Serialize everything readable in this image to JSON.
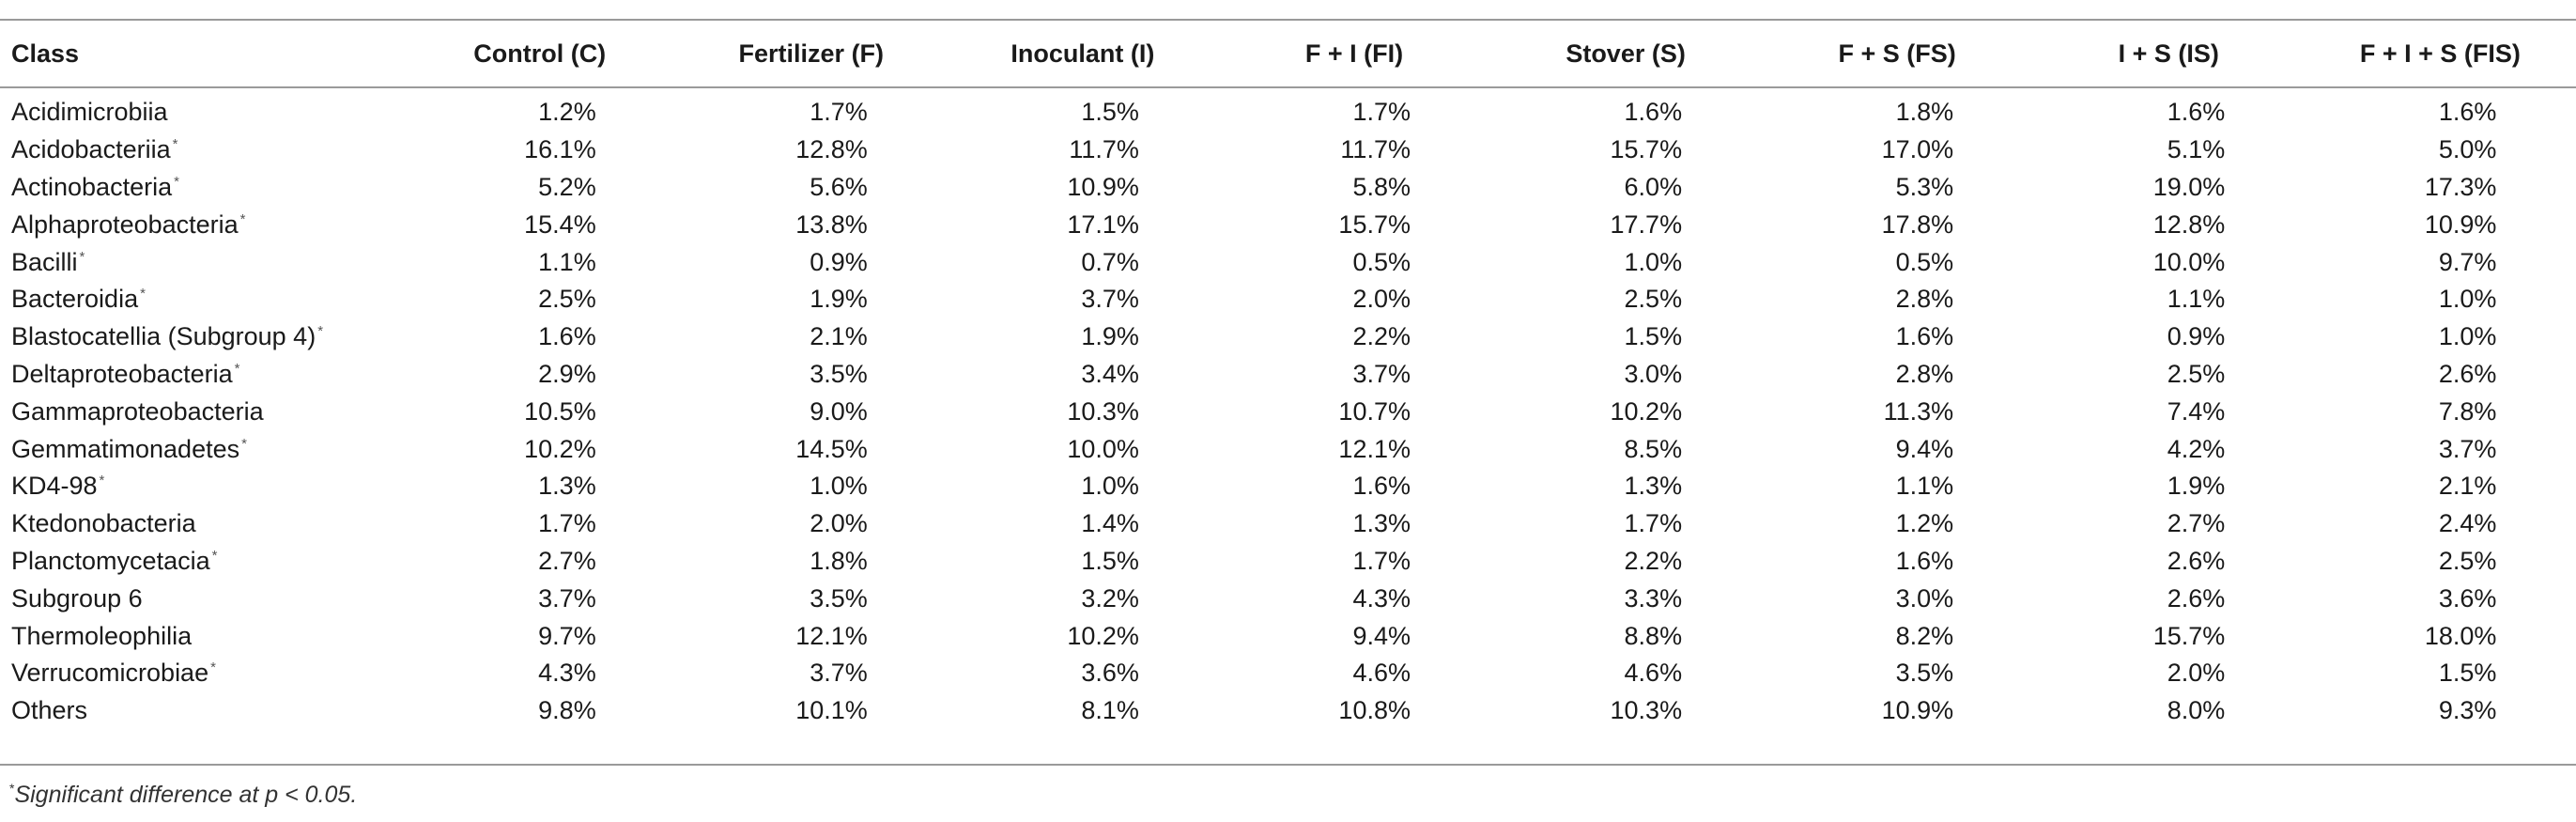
{
  "table": {
    "columns": [
      "Class",
      "Control (C)",
      "Fertilizer (F)",
      "Inoculant (I)",
      "F + I (FI)",
      "Stover (S)",
      "F + S (FS)",
      "I + S (IS)",
      "F + I + S (FIS)"
    ],
    "rows": [
      {
        "class": "Acidimicrobiia",
        "sig": "",
        "values": [
          "1.2%",
          "1.7%",
          "1.5%",
          "1.7%",
          "1.6%",
          "1.8%",
          "1.6%",
          "1.6%"
        ]
      },
      {
        "class": "Acidobacteriia",
        "sig": "*",
        "values": [
          "16.1%",
          "12.8%",
          "11.7%",
          "11.7%",
          "15.7%",
          "17.0%",
          "5.1%",
          "5.0%"
        ]
      },
      {
        "class": "Actinobacteria",
        "sig": "*",
        "values": [
          "5.2%",
          "5.6%",
          "10.9%",
          "5.8%",
          "6.0%",
          "5.3%",
          "19.0%",
          "17.3%"
        ]
      },
      {
        "class": "Alphaproteobacteria",
        "sig": "*",
        "values": [
          "15.4%",
          "13.8%",
          "17.1%",
          "15.7%",
          "17.7%",
          "17.8%",
          "12.8%",
          "10.9%"
        ]
      },
      {
        "class": "Bacilli",
        "sig": "*",
        "values": [
          "1.1%",
          "0.9%",
          "0.7%",
          "0.5%",
          "1.0%",
          "0.5%",
          "10.0%",
          "9.7%"
        ]
      },
      {
        "class": "Bacteroidia",
        "sig": "*",
        "values": [
          "2.5%",
          "1.9%",
          "3.7%",
          "2.0%",
          "2.5%",
          "2.8%",
          "1.1%",
          "1.0%"
        ]
      },
      {
        "class": "Blastocatellia (Subgroup 4)",
        "sig": "*",
        "values": [
          "1.6%",
          "2.1%",
          "1.9%",
          "2.2%",
          "1.5%",
          "1.6%",
          "0.9%",
          "1.0%"
        ]
      },
      {
        "class": "Deltaproteobacteria",
        "sig": "*",
        "values": [
          "2.9%",
          "3.5%",
          "3.4%",
          "3.7%",
          "3.0%",
          "2.8%",
          "2.5%",
          "2.6%"
        ]
      },
      {
        "class": "Gammaproteobacteria",
        "sig": "",
        "values": [
          "10.5%",
          "9.0%",
          "10.3%",
          "10.7%",
          "10.2%",
          "11.3%",
          "7.4%",
          "7.8%"
        ]
      },
      {
        "class": "Gemmatimonadetes",
        "sig": "*",
        "values": [
          "10.2%",
          "14.5%",
          "10.0%",
          "12.1%",
          "8.5%",
          "9.4%",
          "4.2%",
          "3.7%"
        ]
      },
      {
        "class": "KD4-98",
        "sig": "*",
        "values": [
          "1.3%",
          "1.0%",
          "1.0%",
          "1.6%",
          "1.3%",
          "1.1%",
          "1.9%",
          "2.1%"
        ]
      },
      {
        "class": "Ktedonobacteria",
        "sig": "",
        "values": [
          "1.7%",
          "2.0%",
          "1.4%",
          "1.3%",
          "1.7%",
          "1.2%",
          "2.7%",
          "2.4%"
        ]
      },
      {
        "class": "Planctomycetacia",
        "sig": "*",
        "values": [
          "2.7%",
          "1.8%",
          "1.5%",
          "1.7%",
          "2.2%",
          "1.6%",
          "2.6%",
          "2.5%"
        ]
      },
      {
        "class": "Subgroup 6",
        "sig": "",
        "values": [
          "3.7%",
          "3.5%",
          "3.2%",
          "4.3%",
          "3.3%",
          "3.0%",
          "2.6%",
          "3.6%"
        ]
      },
      {
        "class": "Thermoleophilia",
        "sig": "",
        "values": [
          "9.7%",
          "12.1%",
          "10.2%",
          "9.4%",
          "8.8%",
          "8.2%",
          "15.7%",
          "18.0%"
        ]
      },
      {
        "class": "Verrucomicrobiae",
        "sig": "*",
        "values": [
          "4.3%",
          "3.7%",
          "3.6%",
          "4.6%",
          "4.6%",
          "3.5%",
          "2.0%",
          "1.5%"
        ]
      },
      {
        "class": "Others",
        "sig": "",
        "values": [
          "9.8%",
          "10.1%",
          "8.1%",
          "10.8%",
          "10.3%",
          "10.9%",
          "8.0%",
          "9.3%"
        ]
      }
    ]
  },
  "footnote": {
    "marker": "*",
    "text": "Significant difference at p < 0.05."
  },
  "colors": {
    "rule": "#9a9a9a",
    "text": "#1a1a1a"
  }
}
